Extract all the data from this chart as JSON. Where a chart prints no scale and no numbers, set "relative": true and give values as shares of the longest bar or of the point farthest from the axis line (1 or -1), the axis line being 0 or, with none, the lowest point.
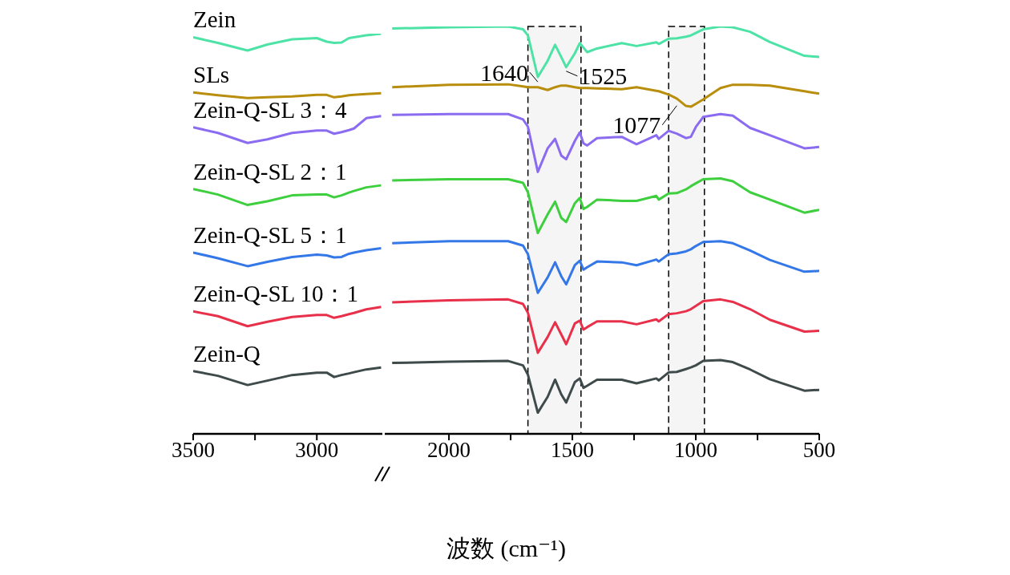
{
  "chart_data": [
    {
      "type": "line",
      "relative": true,
      "xlim": [
        3500,
        2735
      ],
      "xticks": [
        3500,
        {
          "value": 3250,
          "label": null
        },
        3000
      ],
      "x": [
        3500,
        3400,
        3280,
        3200,
        3100,
        3000,
        2960,
        2930,
        2900,
        2870,
        2850,
        2800,
        2740
      ],
      "series": [
        {
          "name": "Zein",
          "color": "#4de3a6",
          "values": [
            0.991,
            0.977,
            0.958,
            0.973,
            0.986,
            0.989,
            0.98,
            0.977,
            0.978,
            0.989,
            0.991,
            0.996,
            1.0
          ]
        },
        {
          "name": "SLs",
          "color": "#b88e0c",
          "values": [
            0.853,
            0.846,
            0.839,
            0.841,
            0.843,
            0.847,
            0.847,
            0.841,
            0.843,
            0.846,
            0.847,
            0.849,
            0.851
          ]
        },
        {
          "name": "Zein-Q-SL 3：4",
          "color": "#8b6cf0",
          "values": [
            0.766,
            0.752,
            0.727,
            0.736,
            0.752,
            0.758,
            0.758,
            0.75,
            0.754,
            0.759,
            0.763,
            0.789,
            0.794
          ]
        },
        {
          "name": "Zein-Q-SL 2：1",
          "color": "#3ecf3e",
          "values": [
            0.612,
            0.598,
            0.572,
            0.581,
            0.596,
            0.598,
            0.598,
            0.591,
            0.596,
            0.603,
            0.607,
            0.616,
            0.621
          ]
        },
        {
          "name": "Zein-Q-SL 5：1",
          "color": "#3478e8",
          "values": [
            0.453,
            0.439,
            0.419,
            0.43,
            0.442,
            0.448,
            0.446,
            0.441,
            0.442,
            0.45,
            0.453,
            0.459,
            0.464
          ]
        },
        {
          "name": "Zein-Q-SL 10：1",
          "color": "#e8304a",
          "values": [
            0.306,
            0.294,
            0.269,
            0.28,
            0.292,
            0.297,
            0.297,
            0.29,
            0.294,
            0.299,
            0.302,
            0.311,
            0.317
          ]
        },
        {
          "name": "Zein-Q",
          "color": "#3f4a4a",
          "values": [
            0.157,
            0.145,
            0.122,
            0.133,
            0.147,
            0.153,
            0.153,
            0.142,
            0.147,
            0.151,
            0.154,
            0.161,
            0.166
          ]
        }
      ]
    },
    {
      "type": "line",
      "relative": true,
      "xlabel": "波数 (cm⁻¹)",
      "xlim": [
        2260,
        500
      ],
      "xticks": [
        2000,
        {
          "value": 1750,
          "label": null
        },
        1500,
        {
          "value": 1250,
          "label": null
        },
        1000,
        {
          "value": 750,
          "label": null
        },
        500
      ],
      "x": [
        2230,
        2000,
        1760,
        1700,
        1680,
        1640,
        1600,
        1570,
        1545,
        1525,
        1490,
        1470,
        1455,
        1440,
        1400,
        1300,
        1240,
        1160,
        1150,
        1110,
        1077,
        1040,
        1020,
        1000,
        970,
        900,
        850,
        780,
        700,
        560,
        500
      ],
      "series": [
        {
          "color": "#4de3a6",
          "values": [
            0.995,
            0.998,
            1.0,
            0.993,
            0.978,
            0.876,
            0.916,
            0.955,
            0.925,
            0.9,
            0.934,
            0.959,
            0.948,
            0.937,
            0.946,
            0.959,
            0.952,
            0.961,
            0.957,
            0.97,
            0.971,
            0.975,
            0.978,
            0.984,
            0.993,
            1.0,
            0.998,
            0.987,
            0.962,
            0.928,
            0.925
          ]
        },
        {
          "color": "#b88e0c",
          "values": [
            0.851,
            0.857,
            0.858,
            0.853,
            0.851,
            0.851,
            0.844,
            0.851,
            0.855,
            0.855,
            0.851,
            0.849,
            0.849,
            0.849,
            0.848,
            0.846,
            0.851,
            0.842,
            0.841,
            0.833,
            0.823,
            0.805,
            0.803,
            0.81,
            0.821,
            0.849,
            0.857,
            0.857,
            0.855,
            0.841,
            0.835
          ]
        },
        {
          "color": "#8b6cf0",
          "values": [
            0.783,
            0.785,
            0.785,
            0.772,
            0.754,
            0.643,
            0.701,
            0.724,
            0.683,
            0.674,
            0.719,
            0.74,
            0.713,
            0.708,
            0.726,
            0.729,
            0.711,
            0.733,
            0.724,
            0.744,
            0.737,
            0.726,
            0.729,
            0.753,
            0.778,
            0.785,
            0.781,
            0.751,
            0.733,
            0.701,
            0.704
          ]
        },
        {
          "color": "#3ecf3e",
          "values": [
            0.622,
            0.625,
            0.625,
            0.616,
            0.593,
            0.493,
            0.539,
            0.57,
            0.53,
            0.52,
            0.566,
            0.579,
            0.552,
            0.557,
            0.575,
            0.572,
            0.572,
            0.584,
            0.575,
            0.59,
            0.591,
            0.6,
            0.608,
            0.615,
            0.625,
            0.627,
            0.62,
            0.593,
            0.575,
            0.543,
            0.55
          ]
        },
        {
          "color": "#3478e8",
          "values": [
            0.468,
            0.473,
            0.473,
            0.462,
            0.441,
            0.346,
            0.384,
            0.421,
            0.387,
            0.367,
            0.414,
            0.425,
            0.403,
            0.409,
            0.423,
            0.421,
            0.414,
            0.428,
            0.423,
            0.441,
            0.443,
            0.448,
            0.453,
            0.461,
            0.471,
            0.473,
            0.468,
            0.45,
            0.427,
            0.398,
            0.4
          ]
        },
        {
          "color": "#e8304a",
          "values": [
            0.323,
            0.328,
            0.33,
            0.319,
            0.297,
            0.199,
            0.238,
            0.274,
            0.244,
            0.22,
            0.271,
            0.278,
            0.256,
            0.262,
            0.276,
            0.276,
            0.269,
            0.281,
            0.276,
            0.294,
            0.296,
            0.301,
            0.306,
            0.314,
            0.326,
            0.33,
            0.324,
            0.306,
            0.28,
            0.251,
            0.253
          ]
        },
        {
          "color": "#3f4a4a",
          "values": [
            0.174,
            0.177,
            0.179,
            0.168,
            0.145,
            0.052,
            0.091,
            0.133,
            0.097,
            0.077,
            0.127,
            0.136,
            0.113,
            0.118,
            0.133,
            0.133,
            0.124,
            0.136,
            0.131,
            0.151,
            0.152,
            0.159,
            0.163,
            0.168,
            0.179,
            0.181,
            0.176,
            0.158,
            0.134,
            0.106,
            0.108
          ]
        }
      ],
      "bands": [
        {
          "axis": "x",
          "from": 1680,
          "to": 1465,
          "color": "#000000"
        },
        {
          "axis": "x",
          "from": 1110,
          "to": 965,
          "color": "#000000"
        }
      ],
      "annotations": [
        {
          "text": "1640",
          "x": 1640,
          "y": 0.876
        },
        {
          "text": "1525",
          "x": 1525,
          "y": 0.9
        },
        {
          "text": "1077",
          "x": 1077,
          "y": 0.823
        }
      ]
    }
  ]
}
